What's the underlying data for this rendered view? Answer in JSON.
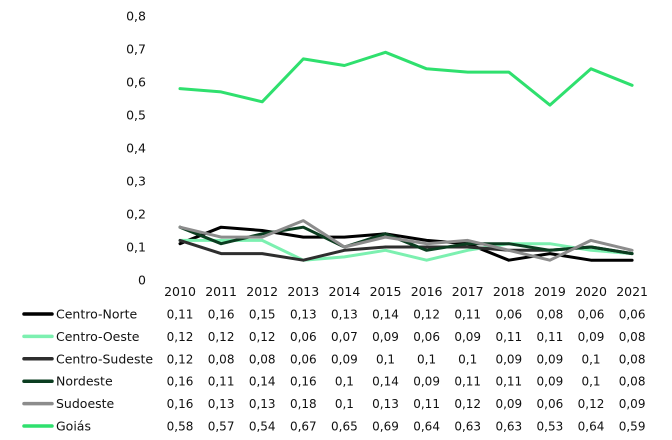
{
  "chart_data": {
    "type": "line",
    "title": "",
    "xlabel": "",
    "ylabel": "",
    "ylim": [
      0,
      0.8
    ],
    "y_ticks": [
      "0",
      "0,1",
      "0,2",
      "0,3",
      "0,4",
      "0,5",
      "0,6",
      "0,7",
      "0,8"
    ],
    "grid": false,
    "legend": "data-table-below",
    "categories": [
      "2010",
      "2011",
      "2012",
      "2013",
      "2014",
      "2015",
      "2016",
      "2017",
      "2018",
      "2019",
      "2020",
      "2021"
    ],
    "series": [
      {
        "name": "Centro-Norte",
        "color": "#000000",
        "values": [
          0.11,
          0.16,
          0.15,
          0.13,
          0.13,
          0.14,
          0.12,
          0.11,
          0.06,
          0.08,
          0.06,
          0.06
        ],
        "labels": [
          "0,11",
          "0,16",
          "0,15",
          "0,13",
          "0,13",
          "0,14",
          "0,12",
          "0,11",
          "0,06",
          "0,08",
          "0,06",
          "0,06"
        ]
      },
      {
        "name": "Centro-Oeste",
        "color": "#7cf0b0",
        "values": [
          0.12,
          0.12,
          0.12,
          0.06,
          0.07,
          0.09,
          0.06,
          0.09,
          0.11,
          0.11,
          0.09,
          0.08
        ],
        "labels": [
          "0,12",
          "0,12",
          "0,12",
          "0,06",
          "0,07",
          "0,09",
          "0,06",
          "0,09",
          "0,11",
          "0,11",
          "0,09",
          "0,08"
        ]
      },
      {
        "name": "Centro-Sudeste",
        "color": "#2e2e2e",
        "values": [
          0.12,
          0.08,
          0.08,
          0.06,
          0.09,
          0.1,
          0.1,
          0.1,
          0.09,
          0.09,
          0.1,
          0.08
        ],
        "labels": [
          "0,12",
          "0,08",
          "0,08",
          "0,06",
          "0,09",
          "0,1",
          "0,1",
          "0,1",
          "0,09",
          "0,09",
          "0,1",
          "0,08"
        ]
      },
      {
        "name": "Nordeste",
        "color": "#0b3d20",
        "values": [
          0.16,
          0.11,
          0.14,
          0.16,
          0.1,
          0.14,
          0.09,
          0.11,
          0.11,
          0.09,
          0.1,
          0.08
        ],
        "labels": [
          "0,16",
          "0,11",
          "0,14",
          "0,16",
          "0,1",
          "0,14",
          "0,09",
          "0,11",
          "0,11",
          "0,09",
          "0,1",
          "0,08"
        ]
      },
      {
        "name": "Sudoeste",
        "color": "#8c8c8c",
        "values": [
          0.16,
          0.13,
          0.13,
          0.18,
          0.1,
          0.13,
          0.11,
          0.12,
          0.09,
          0.06,
          0.12,
          0.09
        ],
        "labels": [
          "0,16",
          "0,13",
          "0,13",
          "0,18",
          "0,1",
          "0,13",
          "0,11",
          "0,12",
          "0,09",
          "0,06",
          "0,12",
          "0,09"
        ]
      },
      {
        "name": "Goiás",
        "color": "#2fe06e",
        "values": [
          0.58,
          0.57,
          0.54,
          0.67,
          0.65,
          0.69,
          0.64,
          0.63,
          0.63,
          0.53,
          0.64,
          0.59
        ],
        "labels": [
          "0,58",
          "0,57",
          "0,54",
          "0,67",
          "0,65",
          "0,69",
          "0,64",
          "0,63",
          "0,63",
          "0,53",
          "0,64",
          "0,59"
        ]
      }
    ]
  }
}
